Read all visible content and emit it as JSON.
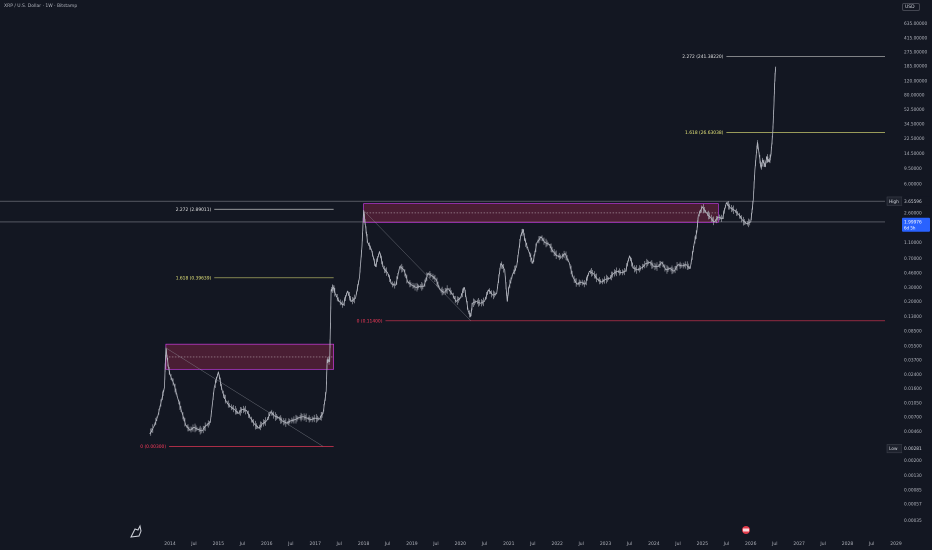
{
  "header": {
    "title": "XRP / U.S. Dollar · 1W · Bitstamp",
    "currency": "USD"
  },
  "colors": {
    "background": "#131722",
    "candles": "#b2b5be",
    "box_fill": "#b22a55",
    "box_border": "#e040fb",
    "fib_level": "#e0e0e0",
    "fib_1618": "#e6e67a",
    "fib_zero": "#ff3b5c",
    "current_price_label": "#2962ff"
  },
  "chart_data": {
    "type": "line",
    "title": "",
    "y_scale": "log",
    "y_range": [
      0.00023,
      1000
    ],
    "y_ticks": [
      "635.00000",
      "415.00000",
      "275.00000",
      "185.00000",
      "120.00000",
      "80.00000",
      "52.50000",
      "34.50000",
      "22.50000",
      "14.50000",
      "9.50000",
      "6.00000",
      "3.65596",
      "2.60000",
      "1.99976",
      "1.10000",
      "0.70000",
      "0.46000",
      "0.30000",
      "0.20000",
      "0.13000",
      "0.08500",
      "0.05500",
      "0.03700",
      "0.02400",
      "0.01600",
      "0.01050",
      "0.00700",
      "0.00460",
      "0.00281",
      "0.00200",
      "0.00130",
      "0.00085",
      "0.00057",
      "0.00035"
    ],
    "x_ticks": [
      "2014",
      "Jul",
      "2015",
      "Jul",
      "2016",
      "Jul",
      "2017",
      "Jul",
      "2018",
      "Jul",
      "2019",
      "Jul",
      "2020",
      "Jul",
      "2021",
      "Jul",
      "2022",
      "Jul",
      "2023",
      "Jul",
      "2024",
      "Jul",
      "2025",
      "Jul",
      "2026",
      "Jul",
      "2027",
      "Jul",
      "2028",
      "Jul",
      "2029"
    ],
    "x_range": [
      "2013-08",
      "2029"
    ],
    "series": [
      {
        "values": [
          [
            "2013-08",
            0.0043
          ],
          [
            "2013-09",
            0.0053
          ],
          [
            "2013-10",
            0.0072
          ],
          [
            "2013-11",
            0.012
          ],
          [
            "2013-11-20",
            0.0165
          ],
          [
            "2013-12",
            0.052
          ],
          [
            "2013-12-20",
            0.03
          ],
          [
            "2014-01",
            0.024
          ],
          [
            "2014-02",
            0.018
          ],
          [
            "2014-03",
            0.012
          ],
          [
            "2014-04",
            0.008
          ],
          [
            "2014-05",
            0.0055
          ],
          [
            "2014-06",
            0.0048
          ],
          [
            "2014-07",
            0.0052
          ],
          [
            "2014-08",
            0.0049
          ],
          [
            "2014-09",
            0.0047
          ],
          [
            "2014-10",
            0.0055
          ],
          [
            "2014-11",
            0.006
          ],
          [
            "2014-12",
            0.0165
          ],
          [
            "2015-01",
            0.026
          ],
          [
            "2015-02",
            0.0145
          ],
          [
            "2015-03",
            0.011
          ],
          [
            "2015-04",
            0.0095
          ],
          [
            "2015-05",
            0.0088
          ],
          [
            "2015-06",
            0.0078
          ],
          [
            "2015-07",
            0.0088
          ],
          [
            "2015-08",
            0.0085
          ],
          [
            "2015-09",
            0.0068
          ],
          [
            "2015-10",
            0.0057
          ],
          [
            "2015-11",
            0.0051
          ],
          [
            "2015-12",
            0.0058
          ],
          [
            "2016-01",
            0.0063
          ],
          [
            "2016-02",
            0.0082
          ],
          [
            "2016-03",
            0.0072
          ],
          [
            "2016-04",
            0.0069
          ],
          [
            "2016-05",
            0.0062
          ],
          [
            "2016-06",
            0.0059
          ],
          [
            "2016-07",
            0.0063
          ],
          [
            "2016-08",
            0.0065
          ],
          [
            "2016-09",
            0.0069
          ],
          [
            "2016-10",
            0.0071
          ],
          [
            "2016-11",
            0.0068
          ],
          [
            "2016-12",
            0.0065
          ],
          [
            "2017-01",
            0.0068
          ],
          [
            "2017-02",
            0.0066
          ],
          [
            "2017-03",
            0.0078
          ],
          [
            "2017-03-25",
            0.015
          ],
          [
            "2017-04",
            0.037
          ],
          [
            "2017-04-20",
            0.035
          ],
          [
            "2017-05",
            0.28
          ],
          [
            "2017-05-20",
            0.3
          ],
          [
            "2017-06",
            0.25
          ],
          [
            "2017-07",
            0.2
          ],
          [
            "2017-08",
            0.18
          ],
          [
            "2017-09",
            0.27
          ],
          [
            "2017-10",
            0.2
          ],
          [
            "2017-11",
            0.22
          ],
          [
            "2017-12",
            0.4
          ],
          [
            "2017-12-20",
            1.0
          ],
          [
            "2018-01",
            2.8
          ],
          [
            "2018-01-15",
            1.8
          ],
          [
            "2018-02",
            1.1
          ],
          [
            "2018-03",
            0.9
          ],
          [
            "2018-04",
            0.55
          ],
          [
            "2018-05",
            0.85
          ],
          [
            "2018-06",
            0.52
          ],
          [
            "2018-07",
            0.46
          ],
          [
            "2018-08",
            0.33
          ],
          [
            "2018-09",
            0.32
          ],
          [
            "2018-10",
            0.55
          ],
          [
            "2018-11",
            0.5
          ],
          [
            "2018-12",
            0.35
          ],
          [
            "2019-01",
            0.32
          ],
          [
            "2019-02",
            0.3
          ],
          [
            "2019-03",
            0.31
          ],
          [
            "2019-04",
            0.31
          ],
          [
            "2019-05",
            0.45
          ],
          [
            "2019-06",
            0.42
          ],
          [
            "2019-07",
            0.38
          ],
          [
            "2019-08",
            0.28
          ],
          [
            "2019-09",
            0.26
          ],
          [
            "2019-10",
            0.29
          ],
          [
            "2019-11",
            0.25
          ],
          [
            "2019-12",
            0.2
          ],
          [
            "2020-01",
            0.22
          ],
          [
            "2020-02",
            0.3
          ],
          [
            "2020-03",
            0.15
          ],
          [
            "2020-03-20",
            0.13
          ],
          [
            "2020-04",
            0.19
          ],
          [
            "2020-05",
            0.2
          ],
          [
            "2020-06",
            0.19
          ],
          [
            "2020-07",
            0.2
          ],
          [
            "2020-08",
            0.28
          ],
          [
            "2020-09",
            0.24
          ],
          [
            "2020-10",
            0.25
          ],
          [
            "2020-11",
            0.6
          ],
          [
            "2020-12",
            0.5
          ],
          [
            "2020-12-20",
            0.2
          ],
          [
            "2021-01",
            0.3
          ],
          [
            "2021-02",
            0.45
          ],
          [
            "2021-03",
            0.55
          ],
          [
            "2021-04",
            1.35
          ],
          [
            "2021-04-20",
            1.6
          ],
          [
            "2021-05",
            1.2
          ],
          [
            "2021-06",
            0.85
          ],
          [
            "2021-07",
            0.6
          ],
          [
            "2021-08",
            1.1
          ],
          [
            "2021-09",
            1.3
          ],
          [
            "2021-10",
            1.1
          ],
          [
            "2021-11",
            1.05
          ],
          [
            "2021-12",
            0.85
          ],
          [
            "2022-01",
            0.75
          ],
          [
            "2022-02",
            0.72
          ],
          [
            "2022-03",
            0.8
          ],
          [
            "2022-04",
            0.62
          ],
          [
            "2022-05",
            0.4
          ],
          [
            "2022-06",
            0.33
          ],
          [
            "2022-07",
            0.35
          ],
          [
            "2022-08",
            0.33
          ],
          [
            "2022-09",
            0.48
          ],
          [
            "2022-10",
            0.45
          ],
          [
            "2022-11",
            0.38
          ],
          [
            "2022-12",
            0.35
          ],
          [
            "2023-01",
            0.38
          ],
          [
            "2023-02",
            0.39
          ],
          [
            "2023-03",
            0.45
          ],
          [
            "2023-04",
            0.48
          ],
          [
            "2023-05",
            0.46
          ],
          [
            "2023-06",
            0.48
          ],
          [
            "2023-07",
            0.75
          ],
          [
            "2023-08",
            0.52
          ],
          [
            "2023-09",
            0.5
          ],
          [
            "2023-10",
            0.53
          ],
          [
            "2023-11",
            0.6
          ],
          [
            "2023-12",
            0.62
          ],
          [
            "2024-01",
            0.55
          ],
          [
            "2024-02",
            0.55
          ],
          [
            "2024-03",
            0.62
          ],
          [
            "2024-04",
            0.5
          ],
          [
            "2024-05",
            0.52
          ],
          [
            "2024-06",
            0.48
          ],
          [
            "2024-07",
            0.58
          ],
          [
            "2024-08",
            0.56
          ],
          [
            "2024-09",
            0.58
          ],
          [
            "2024-10",
            0.52
          ],
          [
            "2024-11",
            1.1
          ],
          [
            "2024-11-20",
            1.5
          ],
          [
            "2024-12",
            2.4
          ],
          [
            "2025-01",
            3.1
          ],
          [
            "2025-02",
            2.6
          ],
          [
            "2025-03",
            2.3
          ],
          [
            "2025-04",
            2.0
          ],
          [
            "2025-05",
            2.3
          ],
          [
            "2025-06",
            2.2
          ],
          [
            "2025-07",
            3.5
          ],
          [
            "2025-08",
            3.0
          ],
          [
            "2025-09",
            2.8
          ],
          [
            "2025-10",
            2.5
          ],
          [
            "2025-11",
            2.1
          ],
          [
            "2025-12",
            1.9
          ],
          [
            "2026-01",
            2.0
          ],
          [
            "2026-01-20",
            3.8
          ],
          [
            "2026-02",
            9.0
          ],
          [
            "2026-02-20",
            20.0
          ],
          [
            "2026-03",
            16.0
          ],
          [
            "2026-03-20",
            9.5
          ],
          [
            "2026-04",
            12.0
          ],
          [
            "2026-04-20",
            10.0
          ],
          [
            "2026-05",
            13.0
          ],
          [
            "2026-05-20",
            11.5
          ],
          [
            "2026-06",
            13.5
          ],
          [
            "2026-06-15",
            25.0
          ],
          [
            "2026-06-25",
            60.0
          ],
          [
            "2026-07",
            120.0
          ],
          [
            "2026-07-08",
            180.0
          ]
        ]
      }
    ]
  },
  "current_price": {
    "value": "1.99976",
    "countdown": "6d 5h"
  },
  "high_marker": {
    "label": "High",
    "value": "3.65596"
  },
  "low_marker": {
    "label": "Low",
    "value": "0.00281"
  },
  "fib_levels": [
    {
      "label": "2.272 (241.38220)",
      "price": 241.3822,
      "x_start": "2025-07",
      "x_end": "2029-06",
      "color": "#e0e0e0"
    },
    {
      "label": "1.618 (26.63038)",
      "price": 26.63038,
      "x_start": "2025-07",
      "x_end": "2029-06",
      "color": "#e6e67a"
    },
    {
      "label": "2.272 (2.89011)",
      "price": 2.89011,
      "x_start": "2014-12",
      "x_end": "2017-05-20",
      "color": "#e0e0e0"
    },
    {
      "label": "1.618 (0.39639)",
      "price": 0.39639,
      "x_start": "2014-12",
      "x_end": "2017-05-20",
      "color": "#e6e67a"
    },
    {
      "label": "0 (0.00300)",
      "price": 0.003,
      "x_start": "2013-12-25",
      "x_end": "2017-05-20",
      "color": "#ff3b5c"
    },
    {
      "label": "0 (0.11400)",
      "price": 0.114,
      "x_start": "2018-06-15",
      "x_end": "2029-06",
      "color": "#ff3b5c"
    }
  ],
  "boxes": [
    {
      "x_start": "2013-12",
      "x_end": "2017-05-20",
      "top": 0.058,
      "bottom": 0.028,
      "mid": 0.04
    },
    {
      "x_start": "2018-01",
      "x_end": "2025-05",
      "top": 3.4,
      "bottom": 1.98,
      "mid": 2.6
    }
  ],
  "trendlines": [
    {
      "from": [
        "2013-12",
        0.052
      ],
      "to": [
        "2017-03",
        0.003
      ]
    },
    {
      "from": [
        "2018-01",
        2.8
      ],
      "to": [
        "2020-03-20",
        0.114
      ]
    }
  ],
  "horizontal_lines": [
    {
      "price": 3.65596
    },
    {
      "price": 1.99976
    }
  ]
}
